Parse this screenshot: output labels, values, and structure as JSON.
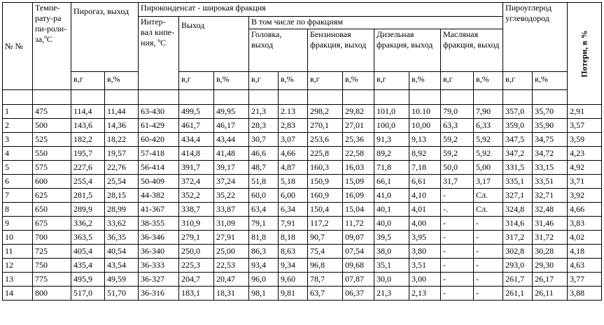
{
  "headers": {
    "num": "№ №",
    "temp": "Темпе-рату-ра пи-роли-за,ºС",
    "pirogaz": "Пирогаз, выход",
    "pirokondensat": "Пироконденсат - широкая фракция",
    "interval": "Интер-вал кипе-ния, ºС",
    "vyhod": "Выход",
    "v_tom_chisle": "В том числе по фракциям",
    "golovka": "Головка, выход",
    "benzin": "Бензиновая фракция, выход",
    "dizel": "Дизельная фракция, выход",
    "maslo": "Масляная фракция, выход",
    "piro_ugl": "Пироуглерод углеводород",
    "poteri": "Потери, в %",
    "unit_g": "в,г",
    "unit_pct": "в,%"
  },
  "rows": [
    [
      "1",
      "475",
      "114,4",
      "11,44",
      "63-430",
      "499,5",
      "49,95",
      "21,3",
      "2.13",
      "298,2",
      "29,82",
      "101,0",
      "10.10",
      "79,0",
      "7,90",
      "357,0",
      "35,70",
      "2,91"
    ],
    [
      "2",
      "500",
      "143,6",
      "14,36",
      "61-429",
      "461,7",
      "46,17",
      "28,3",
      "2,83",
      "270,1",
      "27,01",
      "100,0",
      "10,00",
      "63,3",
      "6,33",
      "359,0",
      "35,90",
      "3,57"
    ],
    [
      "3",
      "525",
      "182,2",
      "18,22",
      "60-420",
      "434,4",
      "43,44",
      "30,7",
      "3,07",
      "253,6",
      "25,36",
      "91,3",
      "9,13",
      "59,2",
      "5,92",
      "347,5",
      "34,75",
      "3,59"
    ],
    [
      "4",
      "550",
      "195,7",
      "19,57",
      "57-418",
      "414,8",
      "41,48",
      "46,6",
      "4,66",
      "225,8",
      "22,58",
      "89,2",
      "8,92",
      "59,2",
      "5,92",
      "347,2",
      "34,72",
      "4,23"
    ],
    [
      "5",
      "575",
      "227,6",
      "22,76",
      "56-414",
      "391,7",
      "39,17",
      "48,7",
      "4,87",
      "160,3",
      "16,03",
      "71,8",
      "7,18",
      "50,0",
      "5,00",
      "331,5",
      "33,15",
      "4,92"
    ],
    [
      "6",
      "600",
      "255,4",
      "25,54",
      "50-409",
      "372,4",
      "37,24",
      "51,8",
      "5,18",
      "150,9",
      "15,09",
      "66,1",
      "6,61",
      "31,7",
      "3,17",
      "335,1",
      "33,51",
      "3,71"
    ],
    [
      "7",
      "625",
      "281,5",
      "28,15",
      "44-382",
      "352,2",
      "35,22",
      "60,0",
      "6,00",
      "160,9",
      "16,09",
      "41,0",
      "4,10",
      "-",
      "Сл.",
      "327,1",
      "32,71",
      "3,92"
    ],
    [
      "8",
      "650",
      "289,9",
      "28,99",
      "41-367",
      "338,7",
      "33,87",
      "63,4",
      "6,34",
      "150,4",
      "15,04",
      "40,1",
      "4,01",
      "-.",
      "Сл.",
      "324,8",
      "32,48",
      "4,66"
    ],
    [
      "9",
      "675",
      "336,2",
      "33,62",
      "38-355",
      "310,9",
      "31,09",
      "79,1",
      "7,91",
      "117,2",
      "11,72",
      "40,0",
      "4,00",
      "-",
      "-",
      "314,6",
      "31,46",
      "3,83"
    ],
    [
      "10",
      "700",
      "363,5",
      "36,35",
      "36-346",
      "279,1",
      "27,91",
      "81,8",
      "8,18",
      "90,7",
      "09,07",
      "39,5",
      "3,95",
      "-",
      "-",
      "317,2",
      "31,72",
      "4,02"
    ],
    [
      "11",
      "725",
      "405,4",
      "40,54",
      "36-340",
      "250,0",
      "25,00",
      "86,3",
      "8,63",
      "75,4",
      "07,54",
      "38,0",
      "3,80",
      "-",
      "-",
      "302,8",
      "30,28",
      "4,18"
    ],
    [
      "12",
      "750",
      "435,4",
      "43,54",
      "36-333",
      "225,3",
      "22,53",
      "93,4",
      "9,34",
      "96,8",
      "09,68",
      "35,1",
      "3,51",
      "-",
      "-",
      "293,0",
      "29,30",
      "4,63"
    ],
    [
      "13",
      "775",
      "495,9",
      "49,59",
      "36-327",
      "204,7",
      "20,47",
      "96,0",
      "9,60",
      "78,7",
      "07,87",
      "30,0",
      "3,00",
      "-",
      "-",
      "261,7",
      "26,17",
      "3,77"
    ],
    [
      "14",
      "800",
      "517,0",
      "51,70",
      "36-316",
      "183,1",
      "18,31",
      "98,1",
      "9,81",
      "63,7",
      "06,37",
      "21,3",
      "2,13",
      "-",
      "-",
      "261,1",
      "26,11",
      "3,88"
    ]
  ]
}
